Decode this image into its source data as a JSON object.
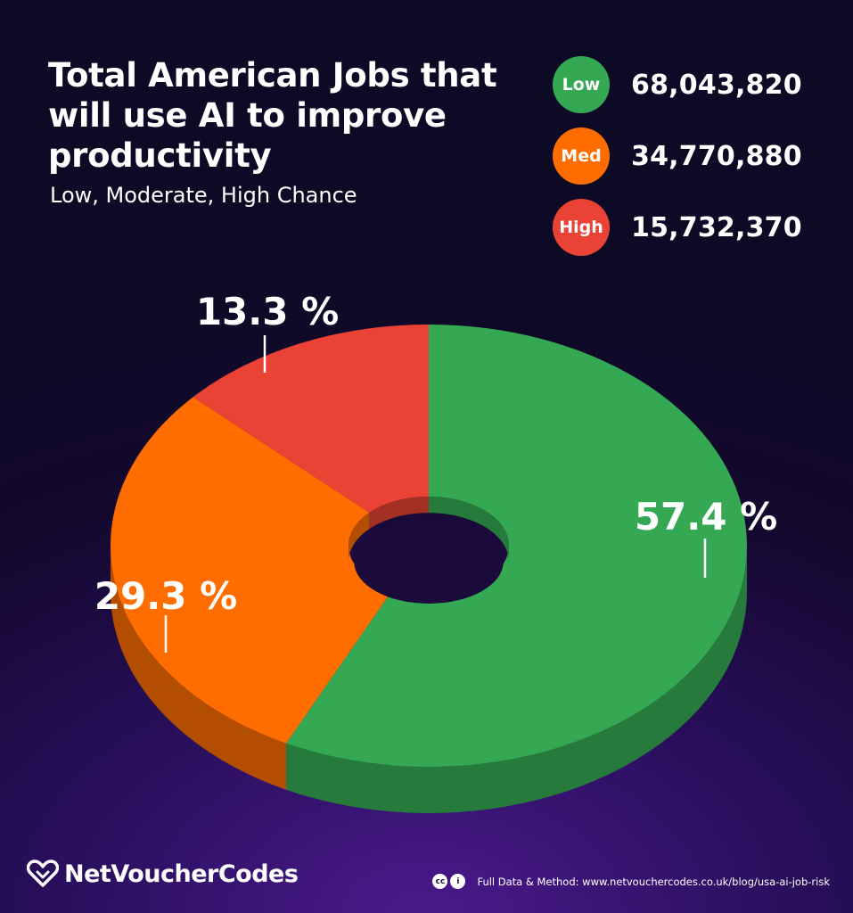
{
  "header": {
    "title": "Total American Jobs that will use AI to improve productivity",
    "subtitle": "Low, Moderate, High Chance"
  },
  "chart_data": {
    "type": "pie",
    "title": "Total American Jobs that will use AI to improve productivity",
    "subtitle": "Low, Moderate, High Chance",
    "categories": [
      "Low",
      "Med",
      "High"
    ],
    "values": [
      68043820,
      34770880,
      15732370
    ],
    "value_labels": [
      "68,043,820",
      "34,770,880",
      "15,732,370"
    ],
    "percent_labels": [
      "57.4 %",
      "29.3 %",
      "13.3 %"
    ],
    "percents": [
      57.4,
      29.3,
      13.3
    ],
    "colors": [
      "#34a853",
      "#ff6d00",
      "#ea4335"
    ],
    "side_colors": [
      "#267a3c",
      "#b34d00",
      "#a32f25"
    ],
    "legend_position": "top-right",
    "donut": true
  },
  "footer": {
    "brand": "NetVoucherCodes",
    "license_icons": [
      "cc",
      "i"
    ],
    "source": "Full Data & Method: www.netvouchercodes.co.uk/blog/usa-ai-job-risk"
  }
}
